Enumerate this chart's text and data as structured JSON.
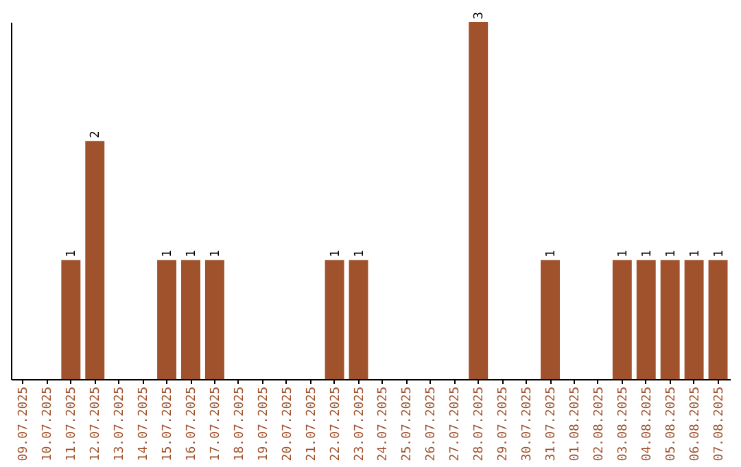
{
  "chart_data": {
    "type": "bar",
    "categories": [
      "09.07.2025",
      "10.07.2025",
      "11.07.2025",
      "12.07.2025",
      "13.07.2025",
      "14.07.2025",
      "15.07.2025",
      "16.07.2025",
      "17.07.2025",
      "18.07.2025",
      "19.07.2025",
      "20.07.2025",
      "21.07.2025",
      "22.07.2025",
      "23.07.2025",
      "24.07.2025",
      "25.07.2025",
      "26.07.2025",
      "27.07.2025",
      "28.07.2025",
      "29.07.2025",
      "30.07.2025",
      "31.07.2025",
      "01.08.2025",
      "02.08.2025",
      "03.08.2025",
      "04.08.2025",
      "05.08.2025",
      "06.08.2025",
      "07.08.2025"
    ],
    "values": [
      0,
      0,
      1,
      2,
      0,
      0,
      1,
      1,
      1,
      0,
      0,
      0,
      0,
      1,
      1,
      0,
      0,
      0,
      0,
      3,
      0,
      0,
      1,
      0,
      0,
      1,
      1,
      1,
      1,
      1
    ],
    "value_labels": [
      null,
      null,
      "1",
      "2",
      null,
      null,
      "1",
      "1",
      "1",
      null,
      null,
      null,
      null,
      "1",
      "1",
      null,
      null,
      null,
      null,
      "3",
      null,
      null,
      "1",
      null,
      null,
      "1",
      "1",
      "1",
      "1",
      "1"
    ],
    "color": "#a0522d",
    "tick_labels": "x"
  }
}
